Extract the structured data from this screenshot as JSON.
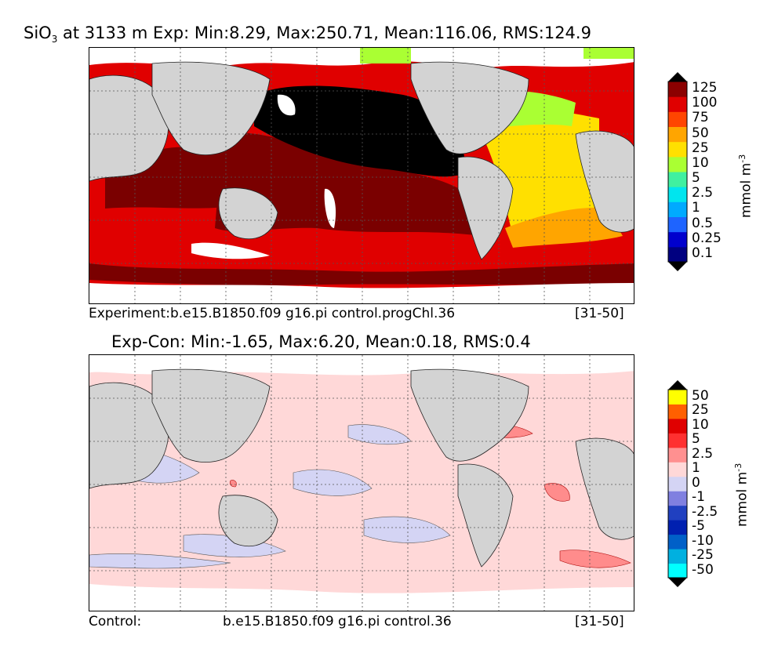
{
  "top": {
    "title_prefix": "SiO",
    "title_sub": "3",
    "title_rest": " at 3133 m Exp: Min:8.29, Max:250.71, Mean:116.06, RMS:124.9",
    "caption_left": "Experiment:b.e15.B1850.f09 g16.pi control.progChl.36",
    "caption_right": "[31-50]",
    "unit_text": "mmol m",
    "unit_exp": "-3",
    "colorbar": {
      "labels": [
        "125",
        "100",
        "75",
        "50",
        "25",
        "10",
        "5",
        "2.5",
        "1",
        "0.5",
        "0.25",
        "0.1"
      ],
      "colors": [
        "#000080",
        "#0000cd",
        "#1e64ff",
        "#00aaff",
        "#00e5ee",
        "#40f0a0",
        "#aaff33",
        "#ffe000",
        "#ffa500",
        "#ff4500",
        "#e00000",
        "#8b0000"
      ],
      "over_color": "#000000",
      "under_color": "#000000"
    }
  },
  "bottom": {
    "title": "Exp-Con: Min:-1.65, Max:6.20, Mean:0.18, RMS:0.4",
    "caption_left": "Control:",
    "caption_mid": "b.e15.B1850.f09 g16.pi control.36",
    "caption_right": "[31-50]",
    "unit_text": "mmol m",
    "unit_exp": "-3",
    "colorbar": {
      "labels": [
        "50",
        "25",
        "10",
        "5",
        "2.5",
        "1",
        "0",
        "-1",
        "-2.5",
        "-5",
        "-10",
        "-25",
        "-50"
      ],
      "colors": [
        "#00ffff",
        "#00b0e0",
        "#0060c8",
        "#0020b0",
        "#2040c0",
        "#8080e0",
        "#d4d4f4",
        "#ffd8d8",
        "#ff9090",
        "#ff3030",
        "#e00000",
        "#ff6000",
        "#ffff00"
      ],
      "over_color": "#000000",
      "under_color": "#000000"
    }
  },
  "colors": {
    "land": "#d3d3d3",
    "ice_white": "#ffffff",
    "deep_black": "#000000",
    "dark_red": "#7a0000",
    "red": "#e00000",
    "yellow": "#ffe000",
    "orange": "#ffa000",
    "pink": "#ffd8d8",
    "lavender": "#d4d4f4",
    "salmon": "#ff8c8c"
  }
}
